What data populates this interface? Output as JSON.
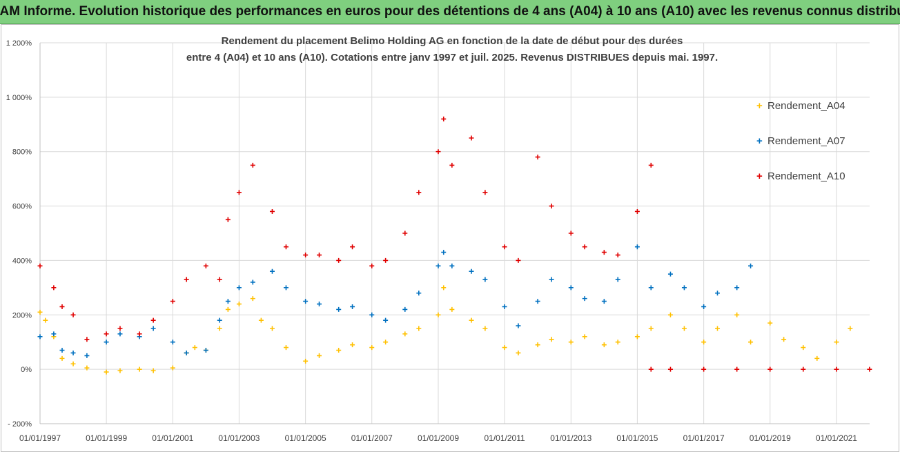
{
  "banner": {
    "title": "ADAM Informe. Evolution historique des performances en euros pour des détentions de 4 ans (A04) à 10 ans (A10) avec les revenus connus distribués"
  },
  "chart_data": {
    "type": "scatter",
    "title_line1": "Rendement du placement Belimo Holding AG en fonction de la date de début pour des durées",
    "title_line2": "entre 4 (A04) et 10 ans (A10).  Cotations entre janv 1997 et juil. 2025. Revenus DISTRIBUES depuis mai. 1997.",
    "xlabel": "",
    "ylabel": "",
    "ylim": [
      -200,
      1200
    ],
    "xlim": [
      "1997-01-01",
      "2022-01-01"
    ],
    "y_ticks": [
      -200,
      0,
      200,
      400,
      600,
      800,
      1000,
      1200
    ],
    "y_tick_labels": [
      "- 200%",
      "0%",
      "200%",
      "400%",
      "600%",
      "800%",
      "1 000%",
      "1 200%"
    ],
    "x_ticks": [
      "1997-01-01",
      "1999-01-01",
      "2001-01-01",
      "2003-01-01",
      "2005-01-01",
      "2007-01-01",
      "2009-01-01",
      "2011-01-01",
      "2013-01-01",
      "2015-01-01",
      "2017-01-01",
      "2019-01-01",
      "2021-01-01"
    ],
    "x_tick_labels": [
      "01/01/1997",
      "01/01/1999",
      "01/01/2001",
      "01/01/2003",
      "01/01/2005",
      "01/01/2007",
      "01/01/2009",
      "01/01/2011",
      "01/01/2013",
      "01/01/2015",
      "01/01/2017",
      "01/01/2019",
      "01/01/2021"
    ],
    "grid": true,
    "legend_position": "right",
    "marker": "+",
    "series": [
      {
        "name": "Rendement_A04",
        "color": "#ffc000",
        "points": [
          [
            "1997-01-01",
            210
          ],
          [
            "1997-03-01",
            180
          ],
          [
            "1997-06-01",
            120
          ],
          [
            "1997-09-01",
            40
          ],
          [
            "1998-01-01",
            20
          ],
          [
            "1998-06-01",
            5
          ],
          [
            "1999-01-01",
            -10
          ],
          [
            "1999-06-01",
            -5
          ],
          [
            "2000-01-01",
            0
          ],
          [
            "2000-06-01",
            -5
          ],
          [
            "2001-01-01",
            5
          ],
          [
            "2001-06-01",
            60
          ],
          [
            "2001-09-01",
            80
          ],
          [
            "2002-01-01",
            70
          ],
          [
            "2002-06-01",
            150
          ],
          [
            "2002-09-01",
            220
          ],
          [
            "2003-01-01",
            240
          ],
          [
            "2003-06-01",
            260
          ],
          [
            "2003-09-01",
            180
          ],
          [
            "2004-01-01",
            150
          ],
          [
            "2004-06-01",
            80
          ],
          [
            "2005-01-01",
            30
          ],
          [
            "2005-06-01",
            50
          ],
          [
            "2006-01-01",
            70
          ],
          [
            "2006-06-01",
            90
          ],
          [
            "2007-01-01",
            80
          ],
          [
            "2007-06-01",
            100
          ],
          [
            "2008-01-01",
            130
          ],
          [
            "2008-06-01",
            150
          ],
          [
            "2009-01-01",
            200
          ],
          [
            "2009-03-01",
            300
          ],
          [
            "2009-06-01",
            220
          ],
          [
            "2010-01-01",
            180
          ],
          [
            "2010-06-01",
            150
          ],
          [
            "2011-01-01",
            80
          ],
          [
            "2011-06-01",
            60
          ],
          [
            "2012-01-01",
            90
          ],
          [
            "2012-06-01",
            110
          ],
          [
            "2013-01-01",
            100
          ],
          [
            "2013-06-01",
            120
          ],
          [
            "2014-01-01",
            90
          ],
          [
            "2014-06-01",
            100
          ],
          [
            "2015-01-01",
            120
          ],
          [
            "2015-06-01",
            150
          ],
          [
            "2016-01-01",
            200
          ],
          [
            "2016-06-01",
            150
          ],
          [
            "2017-01-01",
            100
          ],
          [
            "2017-06-01",
            150
          ],
          [
            "2018-01-01",
            200
          ],
          [
            "2018-06-01",
            100
          ],
          [
            "2019-01-01",
            170
          ],
          [
            "2019-06-01",
            110
          ],
          [
            "2020-01-01",
            80
          ],
          [
            "2020-06-01",
            40
          ],
          [
            "2021-01-01",
            100
          ],
          [
            "2021-06-01",
            150
          ]
        ]
      },
      {
        "name": "Rendement_A07",
        "color": "#0070c0",
        "points": [
          [
            "1997-01-01",
            120
          ],
          [
            "1997-06-01",
            130
          ],
          [
            "1997-09-01",
            70
          ],
          [
            "1998-01-01",
            60
          ],
          [
            "1998-06-01",
            50
          ],
          [
            "1999-01-01",
            100
          ],
          [
            "1999-06-01",
            130
          ],
          [
            "2000-01-01",
            120
          ],
          [
            "2000-06-01",
            150
          ],
          [
            "2001-01-01",
            100
          ],
          [
            "2001-06-01",
            60
          ],
          [
            "2002-01-01",
            70
          ],
          [
            "2002-06-01",
            180
          ],
          [
            "2002-09-01",
            250
          ],
          [
            "2003-01-01",
            300
          ],
          [
            "2003-06-01",
            320
          ],
          [
            "2004-01-01",
            360
          ],
          [
            "2004-06-01",
            300
          ],
          [
            "2005-01-01",
            250
          ],
          [
            "2005-06-01",
            240
          ],
          [
            "2006-01-01",
            220
          ],
          [
            "2006-06-01",
            230
          ],
          [
            "2007-01-01",
            200
          ],
          [
            "2007-06-01",
            180
          ],
          [
            "2008-01-01",
            220
          ],
          [
            "2008-06-01",
            280
          ],
          [
            "2009-01-01",
            380
          ],
          [
            "2009-03-01",
            430
          ],
          [
            "2009-06-01",
            380
          ],
          [
            "2010-01-01",
            360
          ],
          [
            "2010-06-01",
            330
          ],
          [
            "2011-01-01",
            230
          ],
          [
            "2011-06-01",
            160
          ],
          [
            "2012-01-01",
            250
          ],
          [
            "2012-06-01",
            330
          ],
          [
            "2013-01-01",
            300
          ],
          [
            "2013-06-01",
            260
          ],
          [
            "2014-01-01",
            250
          ],
          [
            "2014-06-01",
            330
          ],
          [
            "2015-01-01",
            450
          ],
          [
            "2015-06-01",
            300
          ],
          [
            "2016-01-01",
            350
          ],
          [
            "2016-06-01",
            300
          ],
          [
            "2017-01-01",
            230
          ],
          [
            "2017-06-01",
            280
          ],
          [
            "2018-01-01",
            300
          ],
          [
            "2018-06-01",
            380
          ]
        ]
      },
      {
        "name": "Rendement_A10",
        "color": "#e00000",
        "points": [
          [
            "1997-01-01",
            380
          ],
          [
            "1997-06-01",
            300
          ],
          [
            "1997-09-01",
            230
          ],
          [
            "1998-01-01",
            200
          ],
          [
            "1998-06-01",
            110
          ],
          [
            "1999-01-01",
            130
          ],
          [
            "1999-06-01",
            150
          ],
          [
            "2000-01-01",
            130
          ],
          [
            "2000-06-01",
            180
          ],
          [
            "2001-01-01",
            250
          ],
          [
            "2001-06-01",
            330
          ],
          [
            "2002-01-01",
            380
          ],
          [
            "2002-06-01",
            330
          ],
          [
            "2002-09-01",
            550
          ],
          [
            "2003-01-01",
            650
          ],
          [
            "2003-06-01",
            750
          ],
          [
            "2004-01-01",
            580
          ],
          [
            "2004-06-01",
            450
          ],
          [
            "2005-01-01",
            420
          ],
          [
            "2005-06-01",
            420
          ],
          [
            "2006-01-01",
            400
          ],
          [
            "2006-06-01",
            450
          ],
          [
            "2007-01-01",
            380
          ],
          [
            "2007-06-01",
            400
          ],
          [
            "2008-01-01",
            500
          ],
          [
            "2008-06-01",
            650
          ],
          [
            "2009-01-01",
            800
          ],
          [
            "2009-03-01",
            920
          ],
          [
            "2009-06-01",
            750
          ],
          [
            "2010-01-01",
            850
          ],
          [
            "2010-06-01",
            650
          ],
          [
            "2011-01-01",
            450
          ],
          [
            "2011-06-01",
            400
          ],
          [
            "2012-01-01",
            780
          ],
          [
            "2012-06-01",
            600
          ],
          [
            "2013-01-01",
            500
          ],
          [
            "2013-06-01",
            450
          ],
          [
            "2014-01-01",
            430
          ],
          [
            "2014-06-01",
            420
          ],
          [
            "2015-01-01",
            580
          ],
          [
            "2015-06-01",
            750
          ]
        ]
      },
      {
        "name": "Rendement_A10",
        "color": "#e00000",
        "points": [
          [
            "2015-06-01",
            0
          ],
          [
            "2016-01-01",
            0
          ],
          [
            "2017-01-01",
            0
          ],
          [
            "2018-01-01",
            0
          ],
          [
            "2019-01-01",
            0
          ],
          [
            "2020-01-01",
            0
          ],
          [
            "2021-01-01",
            0
          ],
          [
            "2021-12-31",
            0
          ]
        ]
      }
    ]
  }
}
